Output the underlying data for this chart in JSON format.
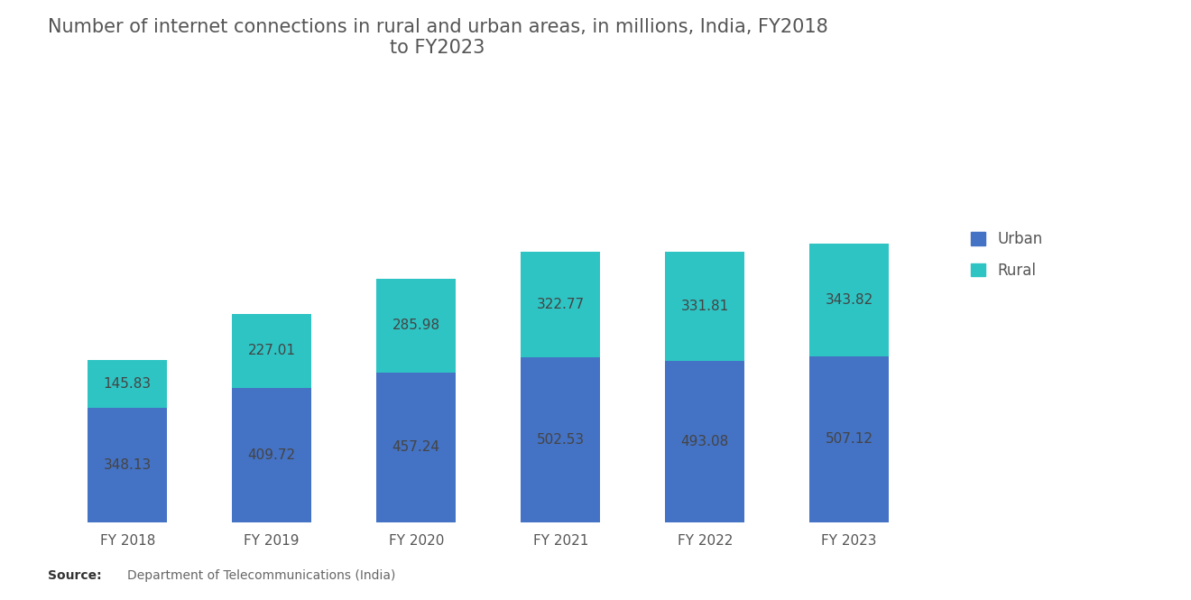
{
  "title": "Number of internet connections in rural and urban areas, in millions, India, FY2018\nto FY2023",
  "categories": [
    "FY 2018",
    "FY 2019",
    "FY 2020",
    "FY 2021",
    "FY 2022",
    "FY 2023"
  ],
  "urban_values": [
    348.13,
    409.72,
    457.24,
    502.53,
    493.08,
    507.12
  ],
  "rural_values": [
    145.83,
    227.01,
    285.98,
    322.77,
    331.81,
    343.82
  ],
  "urban_color": "#4472C4",
  "rural_color": "#2EC4C4",
  "background_color": "#FFFFFF",
  "title_fontsize": 15,
  "label_fontsize": 11,
  "tick_fontsize": 11,
  "legend_labels": [
    "Urban",
    "Rural"
  ],
  "bar_width": 0.55,
  "ylim": [
    0,
    1100
  ],
  "label_color": "#444444"
}
